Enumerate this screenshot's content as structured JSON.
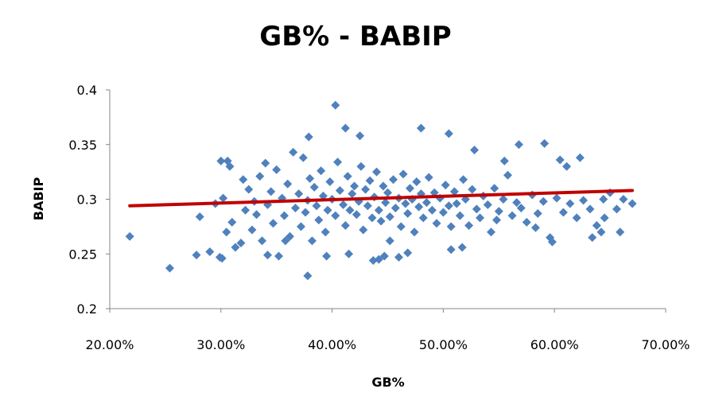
{
  "chart_data": {
    "type": "scatter",
    "title": "GB% - BABIP",
    "xlabel": "GB%",
    "ylabel": "BABIP",
    "xlim": [
      0.2,
      0.7
    ],
    "ylim": [
      0.2,
      0.4
    ],
    "xticks": [
      "20.00%",
      "30.00%",
      "40.00%",
      "50.00%",
      "60.00%",
      "70.00%"
    ],
    "yticks": [
      "0.2",
      "0.25",
      "0.3",
      "0.35",
      "0.4"
    ],
    "grid": false,
    "legend": "none",
    "colors": {
      "points": "#4F81BD",
      "trendline": "#C00000"
    },
    "series": [
      {
        "marker": "diamond",
        "x": [
          0.218,
          0.254,
          0.278,
          0.281,
          0.29,
          0.295,
          0.299,
          0.302,
          0.305,
          0.308,
          0.31,
          0.313,
          0.318,
          0.32,
          0.322,
          0.325,
          0.328,
          0.33,
          0.332,
          0.335,
          0.337,
          0.34,
          0.342,
          0.345,
          0.347,
          0.35,
          0.352,
          0.355,
          0.357,
          0.36,
          0.362,
          0.365,
          0.367,
          0.37,
          0.372,
          0.374,
          0.376,
          0.378,
          0.38,
          0.382,
          0.384,
          0.386,
          0.388,
          0.39,
          0.392,
          0.394,
          0.396,
          0.398,
          0.4,
          0.403,
          0.405,
          0.407,
          0.41,
          0.412,
          0.414,
          0.416,
          0.418,
          0.42,
          0.422,
          0.424,
          0.426,
          0.428,
          0.43,
          0.432,
          0.434,
          0.436,
          0.438,
          0.44,
          0.442,
          0.444,
          0.446,
          0.448,
          0.45,
          0.452,
          0.455,
          0.457,
          0.46,
          0.462,
          0.464,
          0.466,
          0.468,
          0.47,
          0.472,
          0.474,
          0.476,
          0.478,
          0.48,
          0.482,
          0.485,
          0.487,
          0.49,
          0.492,
          0.494,
          0.497,
          0.5,
          0.502,
          0.505,
          0.507,
          0.51,
          0.512,
          0.515,
          0.518,
          0.52,
          0.523,
          0.526,
          0.53,
          0.533,
          0.536,
          0.54,
          0.543,
          0.546,
          0.55,
          0.554,
          0.558,
          0.562,
          0.566,
          0.57,
          0.575,
          0.58,
          0.585,
          0.59,
          0.596,
          0.602,
          0.608,
          0.614,
          0.62,
          0.626,
          0.632,
          0.638,
          0.644,
          0.65,
          0.656,
          0.662,
          0.67,
          0.403,
          0.378,
          0.412,
          0.425,
          0.48,
          0.505,
          0.555,
          0.591,
          0.605,
          0.623,
          0.642,
          0.598,
          0.379,
          0.442,
          0.447,
          0.415,
          0.46,
          0.507,
          0.3,
          0.301,
          0.306,
          0.358,
          0.342,
          0.395,
          0.437,
          0.468,
          0.452,
          0.517,
          0.528,
          0.548,
          0.568,
          0.583,
          0.611,
          0.634,
          0.645,
          0.659
        ],
        "y": [
          0.266,
          0.237,
          0.249,
          0.284,
          0.252,
          0.296,
          0.247,
          0.301,
          0.27,
          0.33,
          0.279,
          0.256,
          0.26,
          0.318,
          0.29,
          0.309,
          0.272,
          0.298,
          0.286,
          0.321,
          0.262,
          0.333,
          0.295,
          0.307,
          0.278,
          0.327,
          0.248,
          0.301,
          0.285,
          0.314,
          0.266,
          0.343,
          0.292,
          0.305,
          0.275,
          0.338,
          0.288,
          0.299,
          0.319,
          0.262,
          0.311,
          0.294,
          0.281,
          0.326,
          0.303,
          0.27,
          0.29,
          0.316,
          0.3,
          0.285,
          0.334,
          0.308,
          0.295,
          0.276,
          0.321,
          0.29,
          0.305,
          0.312,
          0.286,
          0.298,
          0.33,
          0.272,
          0.309,
          0.294,
          0.317,
          0.283,
          0.302,
          0.325,
          0.29,
          0.28,
          0.312,
          0.297,
          0.306,
          0.284,
          0.318,
          0.292,
          0.301,
          0.275,
          0.323,
          0.296,
          0.287,
          0.31,
          0.3,
          0.27,
          0.316,
          0.293,
          0.305,
          0.283,
          0.297,
          0.32,
          0.29,
          0.306,
          0.278,
          0.301,
          0.288,
          0.313,
          0.294,
          0.275,
          0.307,
          0.296,
          0.285,
          0.318,
          0.3,
          0.276,
          0.309,
          0.291,
          0.283,
          0.303,
          0.295,
          0.27,
          0.31,
          0.289,
          0.3,
          0.322,
          0.285,
          0.297,
          0.292,
          0.279,
          0.304,
          0.287,
          0.298,
          0.265,
          0.301,
          0.288,
          0.296,
          0.283,
          0.299,
          0.291,
          0.276,
          0.3,
          0.306,
          0.291,
          0.3,
          0.296,
          0.386,
          0.23,
          0.365,
          0.358,
          0.365,
          0.36,
          0.335,
          0.351,
          0.336,
          0.338,
          0.27,
          0.261,
          0.357,
          0.245,
          0.248,
          0.25,
          0.247,
          0.254,
          0.335,
          0.246,
          0.335,
          0.262,
          0.249,
          0.248,
          0.244,
          0.251,
          0.262,
          0.256,
          0.345,
          0.281,
          0.35,
          0.274,
          0.33,
          0.265,
          0.283,
          0.27
        ]
      }
    ],
    "trendline": {
      "x": [
        0.218,
        0.67
      ],
      "y": [
        0.294,
        0.308
      ]
    }
  }
}
